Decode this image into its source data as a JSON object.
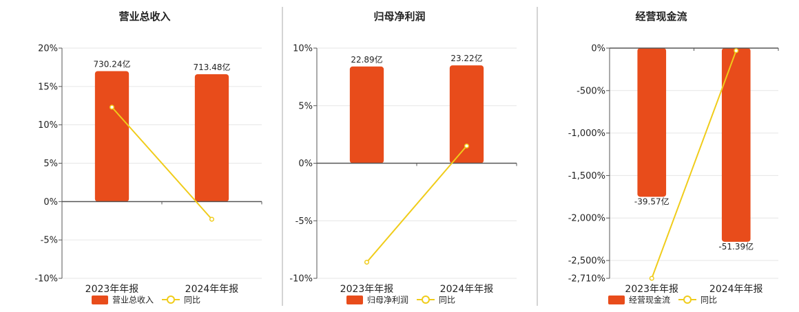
{
  "colors": {
    "bar": "#e84c1b",
    "line": "#f0cc1a",
    "grid": "#e6e6e6",
    "axis": "#555555",
    "divider": "#aaaaaa",
    "text": "#222222"
  },
  "chart_data": [
    {
      "type": "bar",
      "title": "营业总收入",
      "categories": [
        "2023年年报",
        "2024年年报"
      ],
      "series": [
        {
          "name": "营业总收入",
          "kind": "bar",
          "values": [
            17.0,
            16.6
          ],
          "labels": [
            "730.24亿",
            "713.48亿"
          ]
        },
        {
          "name": "同比",
          "kind": "line",
          "values": [
            12.3,
            -2.3
          ]
        }
      ],
      "ylim": [
        -10,
        20
      ],
      "yticks": [
        -10,
        -5,
        0,
        5,
        10,
        15,
        20
      ],
      "ytick_labels": [
        "-10%",
        "-5%",
        "0%",
        "5%",
        "10%",
        "15%",
        "20%"
      ],
      "grid": true,
      "legend_position": "bottom"
    },
    {
      "type": "bar",
      "title": "归母净利润",
      "categories": [
        "2023年年报",
        "2024年年报"
      ],
      "series": [
        {
          "name": "归母净利润",
          "kind": "bar",
          "values": [
            8.4,
            8.5
          ],
          "labels": [
            "22.89亿",
            "23.22亿"
          ]
        },
        {
          "name": "同比",
          "kind": "line",
          "values": [
            -8.6,
            1.5
          ]
        }
      ],
      "ylim": [
        -10,
        10
      ],
      "yticks": [
        -10,
        -5,
        0,
        5,
        10
      ],
      "ytick_labels": [
        "-10%",
        "-5%",
        "0%",
        "5%",
        "10%"
      ],
      "grid": true,
      "legend_position": "bottom"
    },
    {
      "type": "bar",
      "title": "经营现金流",
      "categories": [
        "2023年年报",
        "2024年年报"
      ],
      "series": [
        {
          "name": "经营现金流",
          "kind": "bar",
          "values": [
            -1750,
            -2280
          ],
          "labels": [
            "-39.57亿",
            "-51.39亿"
          ]
        },
        {
          "name": "同比",
          "kind": "line",
          "values": [
            -2710,
            -30
          ]
        }
      ],
      "ylim": [
        -2710,
        0
      ],
      "yticks": [
        -2710,
        -2500,
        -2000,
        -1500,
        -1000,
        -500,
        0
      ],
      "ytick_labels": [
        "-2,710%",
        "-2,500%",
        "-2,000%",
        "-1,500%",
        "-1,000%",
        "-500%",
        "0%"
      ],
      "grid": true,
      "legend_position": "bottom"
    }
  ]
}
